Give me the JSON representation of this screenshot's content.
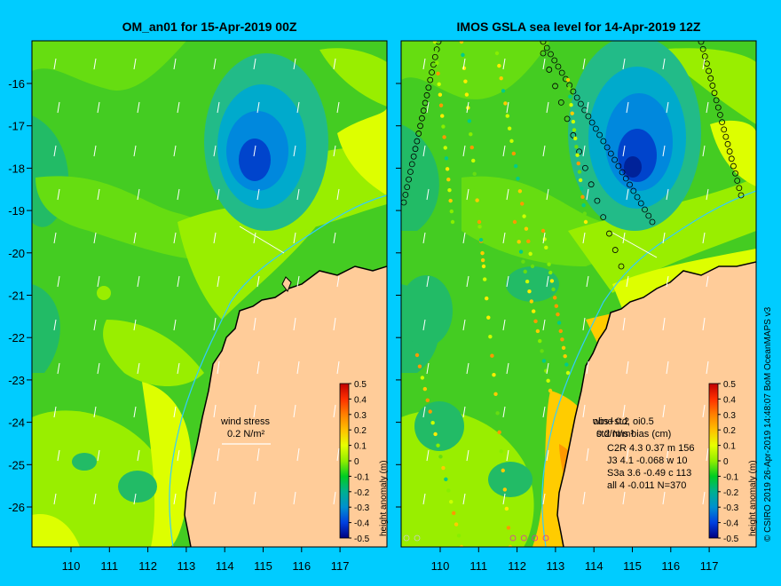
{
  "left_panel": {
    "title": "OM_an01 for 15-Apr-2019 00Z",
    "wind_label": "wind stress",
    "wind_scale": "0.2 N/m²"
  },
  "right_panel": {
    "title": "IMOS GSLA sea level  for 14-Apr-2019 12Z",
    "legend_header": "wind 0.2",
    "legend_sub": "0.2 N/m²",
    "overlay_header": "obs+std, oi0.5",
    "overlay_sub": "std/rms bias (cm)",
    "stats": [
      "C2R   4.3 0.37 m 156",
      "J3    4.1 -0.068 w 10",
      "S3a   3.6 -0.49 c 113",
      "all    4 -0.011 N=370"
    ]
  },
  "colorbar": {
    "label": "height anomaly (m)",
    "ticks": [
      "0.5",
      "0.4",
      "0.3",
      "0.2",
      "0.1",
      "0",
      "-0.1",
      "-0.2",
      "-0.3",
      "-0.4",
      "-0.5"
    ],
    "colors": [
      "#d00000",
      "#ff3000",
      "#ff7000",
      "#ffb000",
      "#ffe000",
      "#ccff00",
      "#80ee00",
      "#00cc00",
      "#00bb66",
      "#00a0a0",
      "#0080d0",
      "#0050e0",
      "#0020c0",
      "#000080"
    ]
  },
  "axes": {
    "x_ticks": [
      "110",
      "111",
      "112",
      "113",
      "114",
      "115",
      "116",
      "117"
    ],
    "y_ticks": [
      "-16",
      "-17",
      "-18",
      "-19",
      "-20",
      "-21",
      "-22",
      "-23",
      "-24",
      "-25",
      "-26"
    ]
  },
  "credit": "© CSIRO 2019   26-Apr-2019 14:48:07 BoM OceanMAPS v3",
  "colors": {
    "background": "#00ccff",
    "land": "#ffcc99",
    "ocean_base": "#44cc22"
  }
}
